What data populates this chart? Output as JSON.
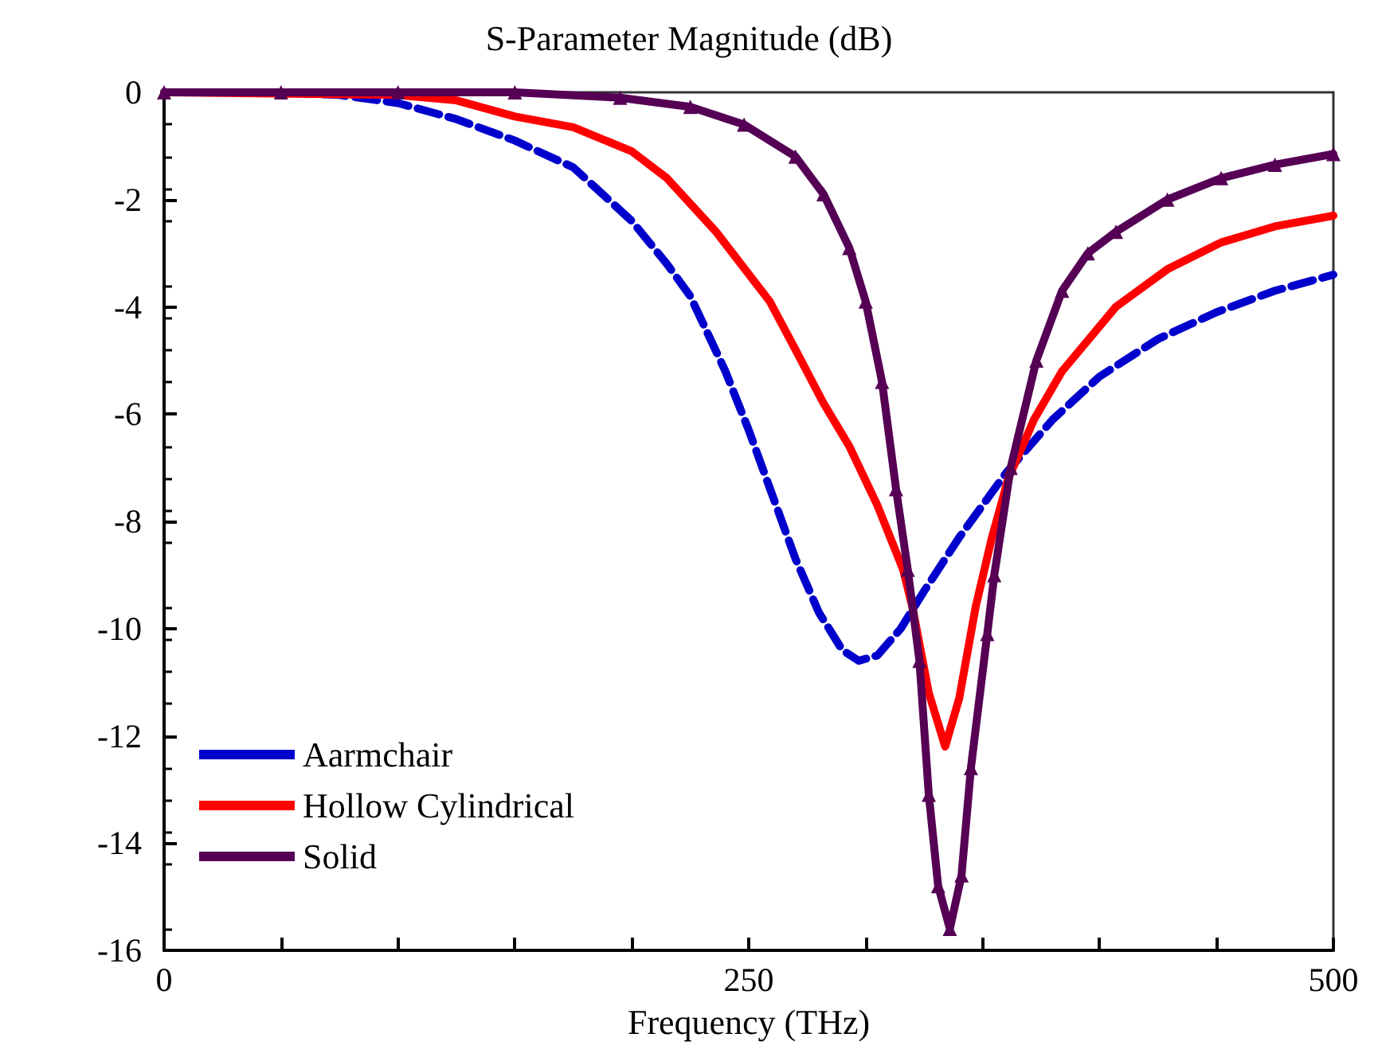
{
  "chart_data": {
    "type": "line",
    "title": "S-Parameter Magnitude (dB)",
    "xlabel": "Frequency (THz)",
    "xlim": [
      0,
      500
    ],
    "xticks": [
      0,
      {
        "value": 50,
        "label": null
      },
      {
        "value": 100,
        "label": null
      },
      {
        "value": 150,
        "label": null
      },
      {
        "value": 200,
        "label": null
      },
      250,
      {
        "value": 300,
        "label": null
      },
      {
        "value": 350,
        "label": null
      },
      {
        "value": 400,
        "label": null
      },
      {
        "value": 450,
        "label": null
      },
      500
    ],
    "ylim": [
      -16,
      0
    ],
    "yticks": [
      -16,
      -14,
      -12,
      -10,
      -8,
      -6,
      -4,
      -2,
      0
    ],
    "grid": false,
    "legend": "bottom left",
    "series": [
      {
        "name": "Aarmchair",
        "color": "#0000cc",
        "line_style": "dashed",
        "marker": "none",
        "x": [
          0,
          50,
          75,
          100,
          125,
          150,
          175,
          200,
          215,
          225,
          240,
          250,
          260,
          270,
          280,
          290,
          297,
          305,
          315,
          325,
          340,
          360,
          380,
          400,
          425,
          450,
          475,
          500
        ],
        "values": [
          0,
          0,
          -0.05,
          -0.2,
          -0.5,
          -0.9,
          -1.4,
          -2.4,
          -3.2,
          -3.8,
          -5.2,
          -6.3,
          -7.5,
          -8.7,
          -9.7,
          -10.4,
          -10.6,
          -10.5,
          -10.0,
          -9.3,
          -8.3,
          -7.1,
          -6.1,
          -5.3,
          -4.6,
          -4.1,
          -3.7,
          -3.4
        ]
      },
      {
        "name": "Hollow Cylindrical",
        "color": "#ff0000",
        "line_style": "solid",
        "marker": "none",
        "x": [
          0,
          100,
          125,
          150,
          175,
          200,
          215,
          236,
          259,
          270,
          282,
          293,
          305,
          316,
          320,
          327,
          334,
          340,
          347,
          354,
          361,
          372,
          384,
          407,
          429,
          452,
          475,
          500
        ],
        "values": [
          0,
          -0.05,
          -0.15,
          -0.45,
          -0.65,
          -1.1,
          -1.6,
          -2.6,
          -3.9,
          -4.8,
          -5.8,
          -6.6,
          -7.7,
          -8.9,
          -9.6,
          -11.2,
          -12.2,
          -11.3,
          -9.6,
          -8.3,
          -7.2,
          -6.1,
          -5.2,
          -4.0,
          -3.3,
          -2.8,
          -2.5,
          -2.3
        ]
      },
      {
        "name": "Solid",
        "color": "#550055",
        "line_style": "solid",
        "marker": "triangle",
        "x": [
          0,
          50,
          100,
          150,
          195,
          225,
          248,
          270,
          282,
          293,
          300,
          307,
          313,
          318,
          323,
          327,
          331,
          336,
          341,
          345,
          352,
          355,
          362,
          373,
          384,
          395,
          407,
          429,
          452,
          475,
          500
        ],
        "values": [
          0,
          0,
          0,
          0,
          -0.1,
          -0.27,
          -0.6,
          -1.2,
          -1.9,
          -2.9,
          -3.9,
          -5.4,
          -7.4,
          -8.9,
          -10.6,
          -13.1,
          -14.8,
          -15.6,
          -14.6,
          -12.6,
          -10.1,
          -9.0,
          -7.0,
          -5.0,
          -3.7,
          -3.0,
          -2.6,
          -2.0,
          -1.6,
          -1.35,
          -1.15
        ]
      }
    ]
  }
}
